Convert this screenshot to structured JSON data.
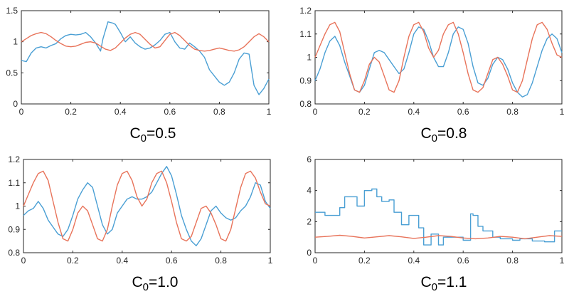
{
  "colors": {
    "blue": "#4a9fd4",
    "orange": "#e8735a"
  },
  "chart_data": [
    {
      "type": "line",
      "caption": {
        "base": "C",
        "sub": "0",
        "rest": "=0.5"
      },
      "xlim": [
        0,
        1
      ],
      "ylim": [
        0,
        1.5
      ],
      "xticks": [
        0,
        0.2,
        0.4,
        0.6,
        0.8,
        1
      ],
      "xtick_labels": [
        "0",
        "0.2",
        "0.4",
        "0.6",
        "0.8",
        "1"
      ],
      "yticks": [
        0,
        0.5,
        1,
        1.5
      ],
      "ytick_labels": [
        "0",
        "0.5",
        "1",
        "1.5"
      ],
      "series": [
        {
          "color": "#4a9fd4",
          "x": [
            0,
            0.02,
            0.04,
            0.06,
            0.08,
            0.1,
            0.12,
            0.14,
            0.16,
            0.18,
            0.2,
            0.22,
            0.24,
            0.26,
            0.28,
            0.3,
            0.32,
            0.33,
            0.35,
            0.37,
            0.38,
            0.4,
            0.42,
            0.44,
            0.46,
            0.48,
            0.5,
            0.52,
            0.54,
            0.56,
            0.58,
            0.6,
            0.62,
            0.64,
            0.66,
            0.68,
            0.7,
            0.72,
            0.74,
            0.76,
            0.78,
            0.8,
            0.82,
            0.84,
            0.86,
            0.88,
            0.9,
            0.92,
            0.94,
            0.96,
            0.98,
            1
          ],
          "y": [
            0.7,
            0.68,
            0.82,
            0.9,
            0.92,
            0.9,
            0.94,
            0.97,
            1.05,
            1.1,
            1.12,
            1.11,
            1.12,
            1.15,
            1.08,
            0.98,
            0.85,
            1.05,
            1.32,
            1.3,
            1.28,
            1.15,
            1.0,
            1.08,
            0.98,
            0.92,
            0.88,
            0.9,
            0.95,
            1.02,
            1.12,
            1.15,
            1.0,
            0.9,
            0.88,
            0.98,
            0.92,
            0.85,
            0.75,
            0.55,
            0.45,
            0.35,
            0.3,
            0.35,
            0.5,
            0.72,
            0.82,
            0.8,
            0.3,
            0.15,
            0.25,
            0.4
          ]
        },
        {
          "color": "#e8735a",
          "x": [
            0,
            0.02,
            0.04,
            0.06,
            0.08,
            0.1,
            0.12,
            0.14,
            0.16,
            0.18,
            0.2,
            0.22,
            0.24,
            0.26,
            0.28,
            0.3,
            0.32,
            0.34,
            0.36,
            0.38,
            0.4,
            0.42,
            0.44,
            0.46,
            0.48,
            0.5,
            0.52,
            0.54,
            0.56,
            0.58,
            0.6,
            0.62,
            0.64,
            0.66,
            0.68,
            0.7,
            0.72,
            0.74,
            0.76,
            0.78,
            0.8,
            0.82,
            0.84,
            0.86,
            0.88,
            0.9,
            0.92,
            0.94,
            0.96,
            0.98,
            1
          ],
          "y": [
            1.0,
            1.05,
            1.1,
            1.13,
            1.15,
            1.13,
            1.08,
            1.02,
            0.97,
            0.93,
            0.92,
            0.93,
            0.96,
            0.99,
            1.0,
            0.98,
            0.93,
            0.88,
            0.86,
            0.9,
            0.98,
            1.06,
            1.12,
            1.15,
            1.12,
            1.04,
            0.96,
            0.9,
            0.92,
            1.02,
            1.12,
            1.15,
            1.1,
            1.02,
            0.94,
            0.88,
            0.86,
            0.85,
            0.86,
            0.88,
            0.9,
            0.88,
            0.86,
            0.85,
            0.87,
            0.92,
            1.0,
            1.08,
            1.13,
            1.08,
            1.0
          ]
        }
      ]
    },
    {
      "type": "line",
      "caption": {
        "base": "C",
        "sub": "0",
        "rest": "=0.8"
      },
      "xlim": [
        0,
        1
      ],
      "ylim": [
        0.8,
        1.2
      ],
      "xticks": [
        0,
        0.2,
        0.4,
        0.6,
        0.8,
        1
      ],
      "xtick_labels": [
        "0",
        "0.2",
        "0.4",
        "0.6",
        "0.8",
        "1"
      ],
      "yticks": [
        0.8,
        0.9,
        1.0,
        1.1,
        1.2
      ],
      "ytick_labels": [
        "0.8",
        "0.9",
        "1",
        "1.1",
        "1.2"
      ],
      "series": [
        {
          "color": "#4a9fd4",
          "x": [
            0,
            0.02,
            0.04,
            0.06,
            0.08,
            0.1,
            0.12,
            0.14,
            0.16,
            0.18,
            0.2,
            0.22,
            0.24,
            0.26,
            0.28,
            0.3,
            0.32,
            0.34,
            0.36,
            0.38,
            0.4,
            0.42,
            0.44,
            0.46,
            0.48,
            0.5,
            0.52,
            0.54,
            0.56,
            0.58,
            0.6,
            0.62,
            0.64,
            0.66,
            0.68,
            0.7,
            0.72,
            0.74,
            0.76,
            0.78,
            0.8,
            0.82,
            0.84,
            0.86,
            0.88,
            0.9,
            0.92,
            0.94,
            0.96,
            0.98,
            1
          ],
          "y": [
            0.9,
            0.95,
            1.02,
            1.07,
            1.09,
            1.05,
            0.98,
            0.92,
            0.86,
            0.85,
            0.88,
            0.95,
            1.02,
            1.03,
            1.02,
            0.99,
            0.96,
            0.93,
            0.95,
            1.02,
            1.1,
            1.13,
            1.12,
            1.07,
            1.0,
            0.96,
            0.96,
            1.02,
            1.1,
            1.13,
            1.12,
            1.06,
            0.96,
            0.89,
            0.88,
            0.91,
            0.97,
            1.0,
            0.99,
            0.95,
            0.89,
            0.85,
            0.83,
            0.84,
            0.89,
            0.96,
            1.03,
            1.08,
            1.1,
            1.08,
            1.02
          ]
        },
        {
          "color": "#e8735a",
          "x": [
            0,
            0.02,
            0.04,
            0.06,
            0.08,
            0.1,
            0.12,
            0.14,
            0.16,
            0.18,
            0.2,
            0.22,
            0.24,
            0.26,
            0.28,
            0.3,
            0.32,
            0.34,
            0.36,
            0.38,
            0.4,
            0.42,
            0.44,
            0.46,
            0.48,
            0.5,
            0.52,
            0.54,
            0.56,
            0.58,
            0.6,
            0.62,
            0.64,
            0.66,
            0.68,
            0.7,
            0.72,
            0.74,
            0.76,
            0.78,
            0.8,
            0.82,
            0.84,
            0.86,
            0.88,
            0.9,
            0.92,
            0.94,
            0.96,
            0.98,
            1
          ],
          "y": [
            1.0,
            1.05,
            1.1,
            1.14,
            1.15,
            1.11,
            1.02,
            0.93,
            0.86,
            0.85,
            0.9,
            0.97,
            1.0,
            0.98,
            0.92,
            0.86,
            0.85,
            0.9,
            1.0,
            1.09,
            1.14,
            1.15,
            1.11,
            1.04,
            1.0,
            1.03,
            1.1,
            1.14,
            1.15,
            1.1,
            1.02,
            0.93,
            0.86,
            0.85,
            0.87,
            0.93,
            0.99,
            1.0,
            0.97,
            0.92,
            0.86,
            0.85,
            0.9,
            0.99,
            1.08,
            1.14,
            1.15,
            1.12,
            1.06,
            1.01,
            1.0
          ]
        }
      ]
    },
    {
      "type": "line",
      "caption": {
        "base": "C",
        "sub": "0",
        "rest": "=1.0"
      },
      "xlim": [
        0,
        1
      ],
      "ylim": [
        0.8,
        1.2
      ],
      "xticks": [
        0,
        0.2,
        0.4,
        0.6,
        0.8,
        1
      ],
      "xtick_labels": [
        "0",
        "0.2",
        "0.4",
        "0.6",
        "0.8",
        "1"
      ],
      "yticks": [
        0.8,
        0.9,
        1.0,
        1.1,
        1.2
      ],
      "ytick_labels": [
        "0.8",
        "0.9",
        "1",
        "1.1",
        "1.2"
      ],
      "series": [
        {
          "color": "#4a9fd4",
          "x": [
            0,
            0.02,
            0.04,
            0.06,
            0.08,
            0.1,
            0.12,
            0.14,
            0.16,
            0.18,
            0.2,
            0.22,
            0.24,
            0.26,
            0.28,
            0.3,
            0.32,
            0.34,
            0.36,
            0.38,
            0.4,
            0.42,
            0.44,
            0.46,
            0.48,
            0.5,
            0.52,
            0.54,
            0.56,
            0.58,
            0.6,
            0.62,
            0.64,
            0.66,
            0.68,
            0.7,
            0.72,
            0.74,
            0.76,
            0.78,
            0.8,
            0.82,
            0.84,
            0.86,
            0.88,
            0.9,
            0.92,
            0.94,
            0.96,
            0.98,
            1
          ],
          "y": [
            0.96,
            0.98,
            0.99,
            1.02,
            0.99,
            0.94,
            0.91,
            0.88,
            0.87,
            0.9,
            0.96,
            1.03,
            1.07,
            1.1,
            1.08,
            1.0,
            0.92,
            0.88,
            0.9,
            0.97,
            1.0,
            1.03,
            1.04,
            1.03,
            1.03,
            1.04,
            1.06,
            1.1,
            1.14,
            1.17,
            1.13,
            1.05,
            0.96,
            0.9,
            0.85,
            0.83,
            0.86,
            0.92,
            0.98,
            1.0,
            0.97,
            0.95,
            0.94,
            0.95,
            0.98,
            1.0,
            1.04,
            1.1,
            1.09,
            1.02,
            0.99
          ]
        },
        {
          "color": "#e8735a",
          "x": [
            0,
            0.02,
            0.04,
            0.06,
            0.08,
            0.1,
            0.12,
            0.14,
            0.16,
            0.18,
            0.2,
            0.22,
            0.24,
            0.26,
            0.28,
            0.3,
            0.32,
            0.34,
            0.36,
            0.38,
            0.4,
            0.42,
            0.44,
            0.46,
            0.48,
            0.5,
            0.52,
            0.54,
            0.56,
            0.58,
            0.6,
            0.62,
            0.64,
            0.66,
            0.68,
            0.7,
            0.72,
            0.74,
            0.76,
            0.78,
            0.8,
            0.82,
            0.84,
            0.86,
            0.88,
            0.9,
            0.92,
            0.94,
            0.96,
            0.98,
            1
          ],
          "y": [
            1.0,
            1.05,
            1.1,
            1.14,
            1.15,
            1.11,
            1.02,
            0.93,
            0.86,
            0.85,
            0.9,
            0.97,
            1.0,
            0.98,
            0.92,
            0.86,
            0.85,
            0.9,
            1.0,
            1.09,
            1.14,
            1.15,
            1.11,
            1.04,
            1.0,
            1.03,
            1.1,
            1.14,
            1.15,
            1.1,
            1.02,
            0.93,
            0.86,
            0.85,
            0.87,
            0.93,
            0.99,
            1.0,
            0.97,
            0.92,
            0.86,
            0.85,
            0.9,
            0.99,
            1.08,
            1.14,
            1.15,
            1.12,
            1.06,
            1.01,
            1.0
          ]
        }
      ]
    },
    {
      "type": "line",
      "caption": {
        "base": "C",
        "sub": "0",
        "rest": "=1.1"
      },
      "xlim": [
        0,
        1
      ],
      "ylim": [
        0,
        6
      ],
      "xticks": [
        0,
        0.2,
        0.4,
        0.6,
        0.8,
        1
      ],
      "xtick_labels": [
        "0",
        "0.2",
        "0.4",
        "0.6",
        "0.8",
        "1"
      ],
      "yticks": [
        0,
        2,
        4,
        6
      ],
      "ytick_labels": [
        "0",
        "2",
        "4",
        "6"
      ],
      "series": [
        {
          "color": "#4a9fd4",
          "x": [
            0,
            0.04,
            0.04,
            0.1,
            0.1,
            0.12,
            0.12,
            0.17,
            0.17,
            0.2,
            0.2,
            0.23,
            0.23,
            0.25,
            0.25,
            0.27,
            0.27,
            0.3,
            0.3,
            0.32,
            0.32,
            0.35,
            0.35,
            0.38,
            0.38,
            0.42,
            0.42,
            0.44,
            0.44,
            0.47,
            0.47,
            0.5,
            0.5,
            0.52,
            0.52,
            0.55,
            0.55,
            0.6,
            0.6,
            0.63,
            0.63,
            0.64,
            0.64,
            0.66,
            0.66,
            0.68,
            0.68,
            0.72,
            0.72,
            0.75,
            0.75,
            0.8,
            0.8,
            0.83,
            0.83,
            0.88,
            0.88,
            0.93,
            0.93,
            0.97,
            0.97,
            1
          ],
          "y": [
            2.6,
            2.6,
            2.4,
            2.4,
            2.9,
            2.9,
            3.6,
            3.6,
            3.0,
            3.0,
            4.0,
            4.0,
            4.1,
            4.1,
            3.6,
            3.6,
            3.3,
            3.3,
            3.4,
            3.4,
            2.6,
            2.6,
            1.8,
            1.8,
            2.4,
            2.4,
            1.6,
            1.6,
            0.5,
            0.5,
            1.2,
            1.2,
            0.5,
            0.5,
            1.0,
            1.0,
            1.0,
            1.0,
            0.8,
            0.8,
            2.5,
            2.5,
            2.4,
            2.4,
            1.7,
            1.7,
            1.4,
            1.4,
            1.0,
            1.0,
            0.9,
            0.9,
            0.8,
            0.8,
            0.9,
            0.9,
            0.75,
            0.75,
            0.7,
            0.7,
            1.4,
            1.4
          ]
        },
        {
          "color": "#e8735a",
          "x": [
            0,
            0.05,
            0.1,
            0.15,
            0.2,
            0.25,
            0.3,
            0.35,
            0.4,
            0.45,
            0.5,
            0.55,
            0.6,
            0.65,
            0.7,
            0.75,
            0.8,
            0.85,
            0.9,
            0.95,
            1
          ],
          "y": [
            1.0,
            1.05,
            1.12,
            1.05,
            0.95,
            1.02,
            1.1,
            1.02,
            0.92,
            1.0,
            1.1,
            1.05,
            0.95,
            0.9,
            0.95,
            1.05,
            1.0,
            0.9,
            1.0,
            1.1,
            1.05
          ]
        }
      ]
    }
  ]
}
